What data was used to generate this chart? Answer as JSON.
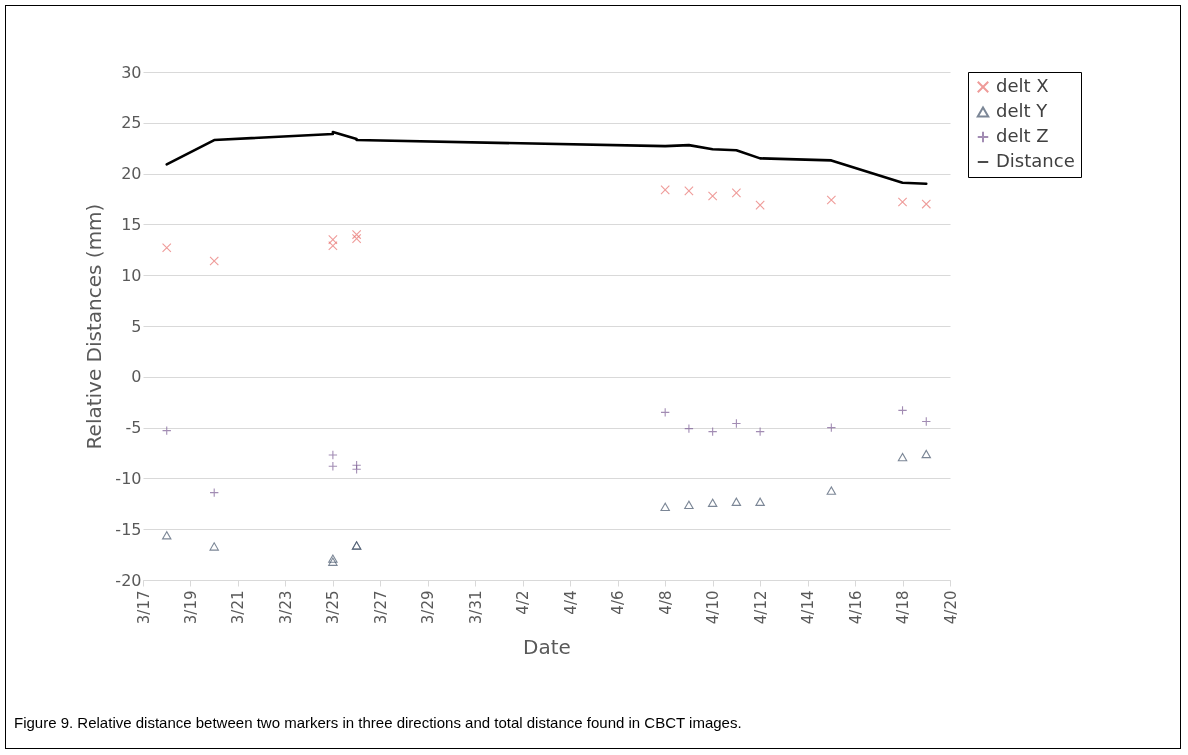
{
  "chart_data": {
    "type": "scatter",
    "xlabel": "Date",
    "ylabel": "Relative Distances (mm)",
    "annotations": [
      "Figure 9. Relative distance between two markers in three directions and total distance found in CBCT images."
    ],
    "x": [
      "--03-18",
      "--03-20",
      "--03-25",
      "--03-25",
      "--03-26",
      "--03-26",
      "--04-08",
      "--04-09",
      "--04-10",
      "--04-11",
      "--04-12",
      "--04-15",
      "--04-18",
      "--04-19"
    ],
    "series": [
      {
        "name": "delt X",
        "color": "#e8716e",
        "marker": "cross",
        "values": [
          12.7,
          11.4,
          13.5,
          12.9,
          14.0,
          13.6,
          18.4,
          18.3,
          17.8,
          18.1,
          16.9,
          17.4,
          17.2,
          17.0
        ]
      },
      {
        "name": "delt Y",
        "color": "#44546a",
        "marker": "triangle",
        "values": [
          -15.6,
          -16.7,
          -17.9,
          -18.2,
          -16.6,
          -16.6,
          -12.8,
          -12.6,
          -12.4,
          -12.3,
          -12.3,
          -11.2,
          -7.9,
          -7.6
        ]
      },
      {
        "name": "delt Z",
        "color": "#7b5c94",
        "marker": "plus",
        "values": [
          -5.3,
          -11.4,
          -7.7,
          -8.8,
          -8.7,
          -9.1,
          -3.5,
          -5.1,
          -5.4,
          -4.6,
          -5.4,
          -5.0,
          -3.3,
          -4.4
        ]
      },
      {
        "name": "Distance",
        "type": "line",
        "color": "#000000",
        "values": [
          20.9,
          23.3,
          23.9,
          24.1,
          23.4,
          23.3,
          22.7,
          22.8,
          22.4,
          22.3,
          21.5,
          21.3,
          19.1,
          19.0
        ]
      }
    ],
    "xlim": [
      "--03-17",
      "--04-20"
    ],
    "xticks": [
      {
        "value": "--03-17",
        "label": "3/17"
      },
      {
        "value": "--03-19",
        "label": "3/19"
      },
      {
        "value": "--03-21",
        "label": "3/21"
      },
      {
        "value": "--03-23",
        "label": "3/23"
      },
      {
        "value": "--03-25",
        "label": "3/25"
      },
      {
        "value": "--03-27",
        "label": "3/27"
      },
      {
        "value": "--03-29",
        "label": "3/29"
      },
      {
        "value": "--03-31",
        "label": "3/31"
      },
      {
        "value": "--04-02",
        "label": "4/2"
      },
      {
        "value": "--04-04",
        "label": "4/4"
      },
      {
        "value": "--04-06",
        "label": "4/6"
      },
      {
        "value": "--04-08",
        "label": "4/8"
      },
      {
        "value": "--04-10",
        "label": "4/10"
      },
      {
        "value": "--04-12",
        "label": "4/12"
      },
      {
        "value": "--04-14",
        "label": "4/14"
      },
      {
        "value": "--04-16",
        "label": "4/16"
      },
      {
        "value": "--04-18",
        "label": "4/18"
      },
      {
        "value": "--04-20",
        "label": "4/20"
      }
    ],
    "ylim": [
      -20,
      30
    ],
    "yticks": [
      -20,
      -15,
      -10,
      -5,
      0,
      5,
      10,
      15,
      20,
      25,
      30
    ],
    "grid": "y",
    "legend": "right",
    "line_style": "solid"
  }
}
